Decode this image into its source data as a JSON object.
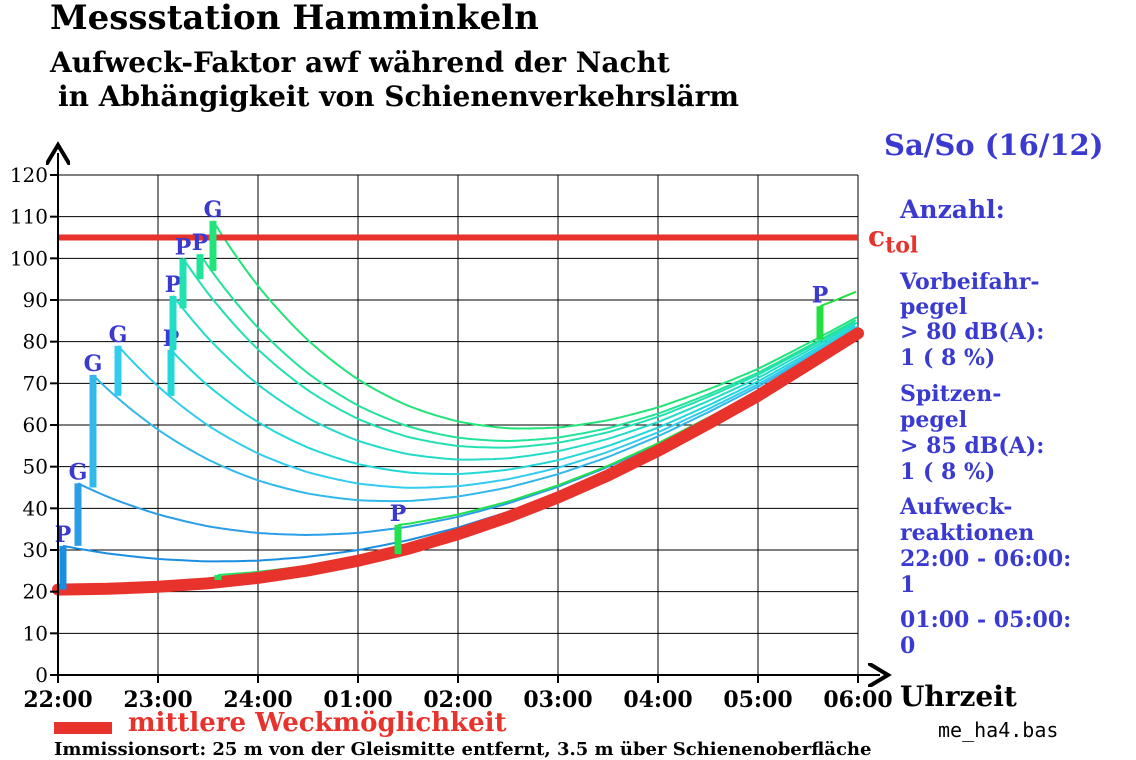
{
  "header": {
    "title": "Messstation Hamminkeln",
    "subtitle_line1": "Aufweck-Faktor awf  während der Nacht",
    "subtitle_line2": "in Abhängigkeit von Schienenverkehrslärm"
  },
  "side_panel": {
    "day": "Sa/So (16/12)",
    "count_heading": "Anzahl:",
    "vorbei_1": "Vorbeifahr-",
    "vorbei_2": "pegel",
    "vorbei_3": "> 80 dB(A):",
    "vorbei_4": "1     ( 8  %)",
    "spitzen_1": "Spitzen-",
    "spitzen_2": "pegel",
    "spitzen_3": "> 85 dB(A):",
    "spitzen_4": "1     ( 8  %)",
    "reakt_1": "Aufweck-",
    "reakt_2": "reaktionen",
    "reakt_3": "22:00 - 06:00:",
    "reakt_4": "1",
    "reakt_5": "01:00 - 05:00:",
    "reakt_6": "0"
  },
  "ctol": {
    "base": "c",
    "sub": "tol"
  },
  "xunit": "Uhrzeit",
  "legend": {
    "label": "mittlere Weckmöglichkeit"
  },
  "file_name": "me_ha4.bas",
  "footer": "Immissionsort: 25 m von der Gleismitte entfernt, 3.5 m über Schienenoberfläche",
  "colors": {
    "baseline": "#e8322c",
    "threshold": "#e8322c",
    "event_labels": "#3a3ad0",
    "axis": "#000000",
    "grid": "#000000"
  },
  "chart_data": {
    "type": "line",
    "ylim": [
      0,
      120
    ],
    "yticks": [
      "0",
      "10",
      "20",
      "30",
      "40",
      "50",
      "60",
      "70",
      "80",
      "90",
      "100",
      "110",
      "120"
    ],
    "xlim": [
      22,
      30
    ],
    "xticks": [
      "22:00",
      "23:00",
      "24:00",
      "01:00",
      "02:00",
      "03:00",
      "04:00",
      "05:00",
      "06:00"
    ],
    "grid": true,
    "threshold": {
      "label": "ctol",
      "value": 105,
      "color": "#e8322c"
    },
    "baseline": {
      "label": "mittlere Weckmöglichkeit",
      "color": "#e8322c",
      "x": [
        22,
        22.5,
        23,
        23.5,
        24,
        24.5,
        25,
        25.5,
        26,
        26.5,
        27,
        27.5,
        28,
        28.5,
        29,
        29.5,
        30
      ],
      "y": [
        20.5,
        20.7,
        21.2,
        22.0,
        23.3,
        25.1,
        27.4,
        30.3,
        33.8,
        37.9,
        42.6,
        47.9,
        53.8,
        60.3,
        67.0,
        74.5,
        82.0
      ]
    },
    "events": [
      {
        "label": "P",
        "time": 22.05,
        "from": 20.5,
        "to": 31,
        "color": "#1a8ee0"
      },
      {
        "label": "G",
        "time": 22.2,
        "from": 31,
        "to": 46,
        "color": "#2b9ee8"
      },
      {
        "label": "G",
        "time": 22.35,
        "from": 45,
        "to": 72,
        "color": "#33b8ea"
      },
      {
        "label": "G",
        "time": 22.6,
        "from": 67,
        "to": 79,
        "color": "#33ccee"
      },
      {
        "label": "P",
        "time": 23.13,
        "from": 67,
        "to": 78,
        "color": "#22d8d8"
      },
      {
        "label": "P",
        "time": 23.15,
        "from": 78,
        "to": 91,
        "color": "#22dcc8"
      },
      {
        "label": "P",
        "time": 23.25,
        "from": 88,
        "to": 100,
        "color": "#22e0b0"
      },
      {
        "label": "P",
        "time": 23.42,
        "from": 95,
        "to": 101,
        "color": "#22e498"
      },
      {
        "label": "G",
        "time": 23.55,
        "from": 97,
        "to": 109,
        "color": "#22e47a"
      },
      {
        "label": "",
        "time": 23.6,
        "from": 22.8,
        "to": 24,
        "color": "#22e060"
      },
      {
        "label": "P",
        "time": 25.4,
        "from": 29,
        "to": 36,
        "color": "#22e050"
      },
      {
        "label": "P",
        "time": 29.62,
        "from": 80.5,
        "to": 88.5,
        "color": "#22e040"
      }
    ],
    "legend_position": "bottom-left"
  }
}
